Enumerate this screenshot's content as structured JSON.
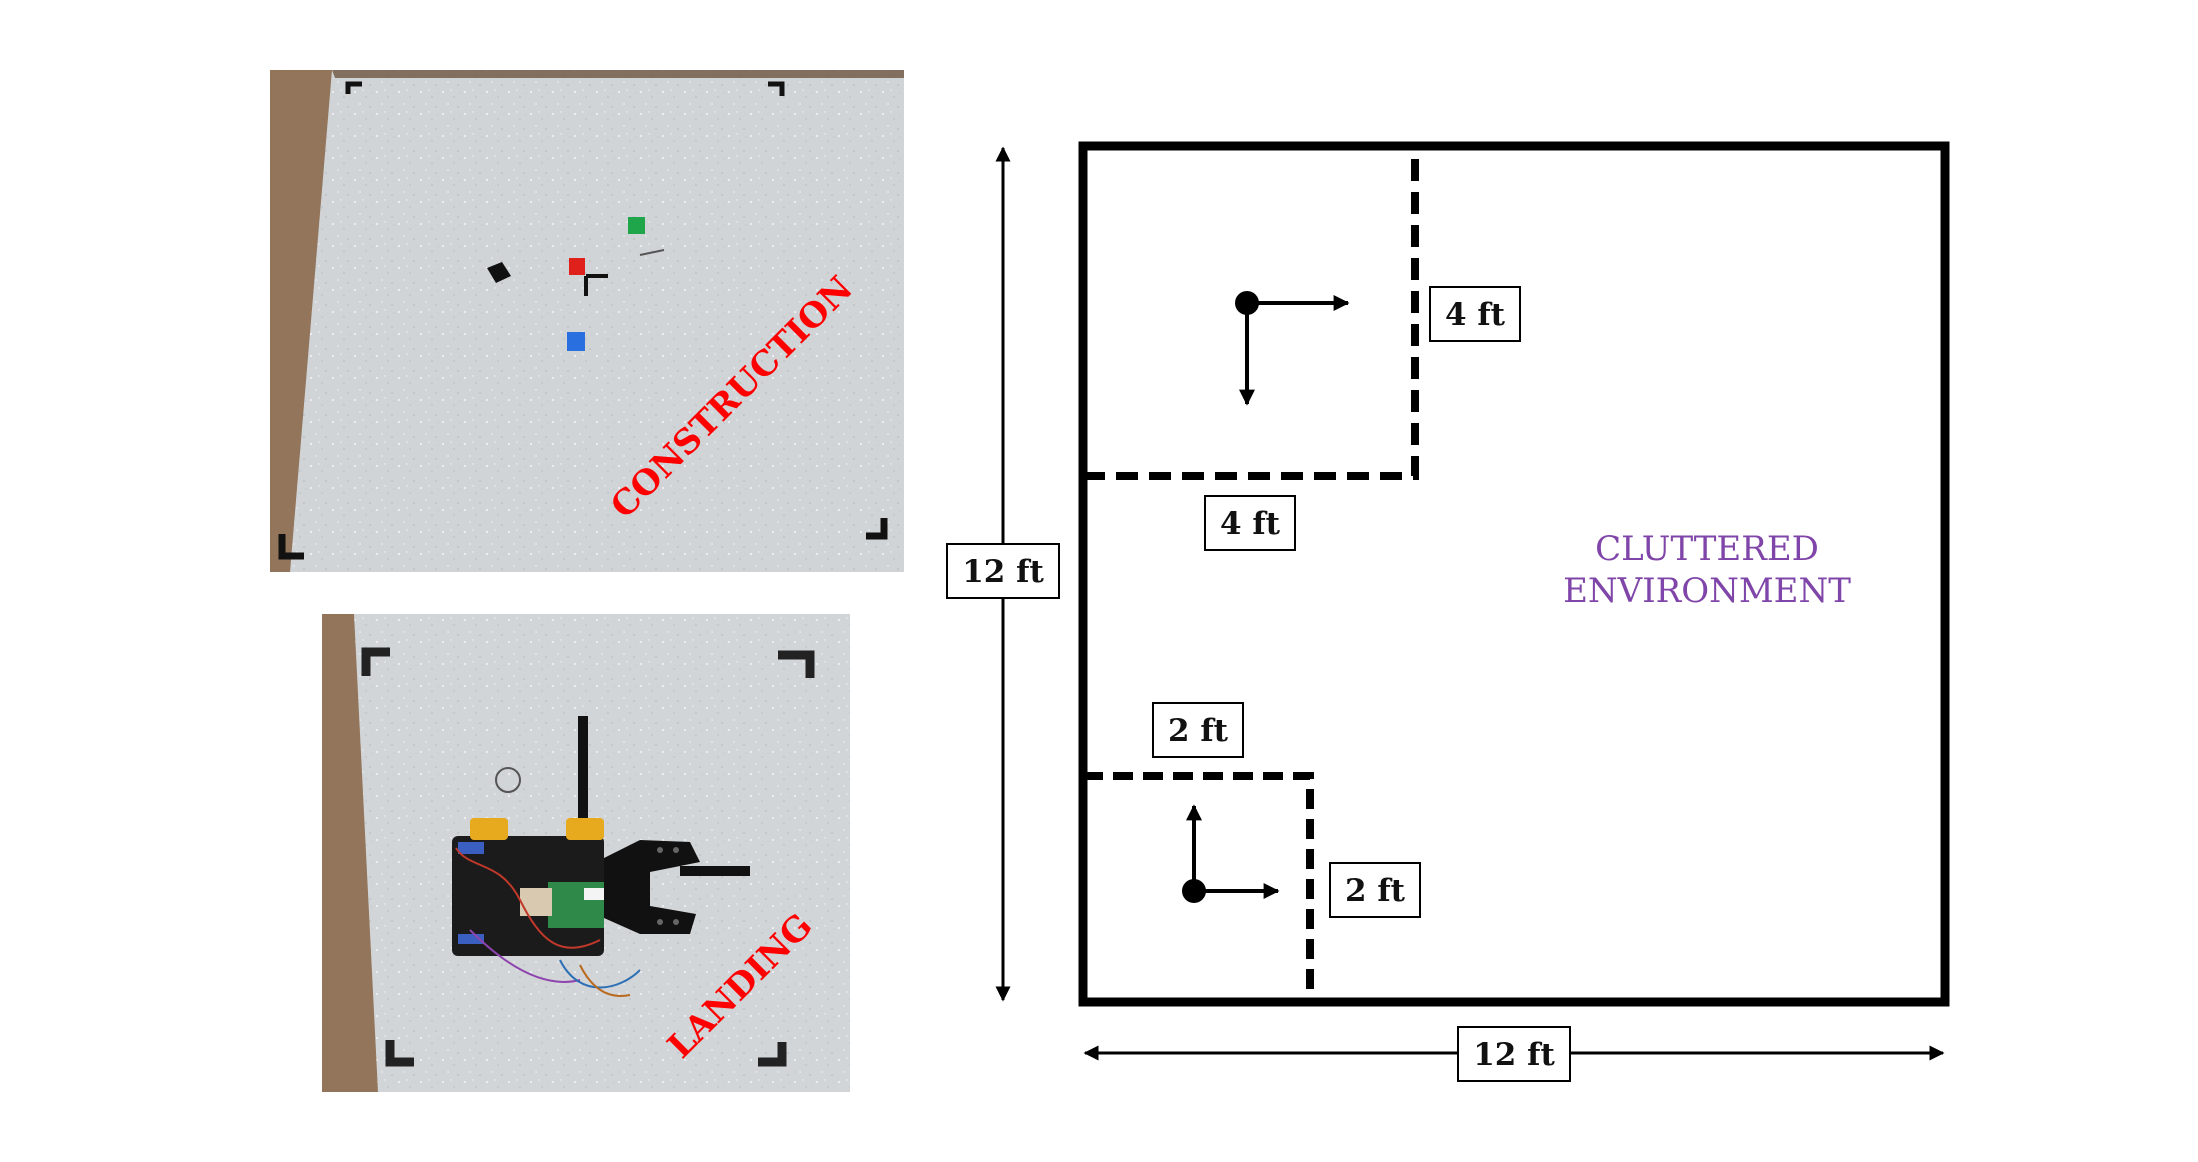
{
  "photos": {
    "construction_label": "CONSTRUCTION",
    "landing_label": "LANDING"
  },
  "diagram": {
    "area_height_label": "12 ft",
    "area_width_label": "12 ft",
    "construction_zone": {
      "width_label": "4 ft",
      "height_label": "4 ft"
    },
    "landing_zone": {
      "width_label": "2 ft",
      "height_label": "2 ft"
    },
    "environment_label_line1": "CLUTTERED",
    "environment_label_line2": "ENVIRONMENT"
  },
  "colors": {
    "photo_label": "#ff0000",
    "environment_label": "#7f45a8",
    "lines": "#000000",
    "floor": "#c9cdd1"
  }
}
